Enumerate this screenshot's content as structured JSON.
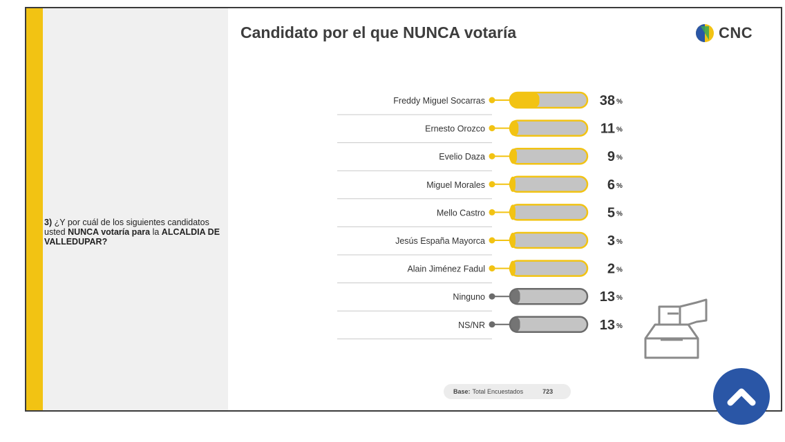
{
  "title": "Candidato por el que NUNCA votaría",
  "logo_text": "CNC",
  "question": {
    "number": "3)",
    "text_1": "¿Y por cuál de los siguientes candidatos usted",
    "text_bold": "NUNCA votaría para",
    "text_2": "la",
    "text_bold_2": "ALCALDIA DE VALLEDUPAR?"
  },
  "base": {
    "label": "Base:",
    "description": "Total Encuestados",
    "value": "723"
  },
  "colors": {
    "accent": "#f2c313",
    "gray": "#6b6b6b",
    "track": "#c4c4c4",
    "scroll_button": "#2a56a6"
  },
  "icons": {
    "logo": "cnc-logo-icon",
    "ballot": "ballot-box-icon",
    "scroll": "chevron-up-icon"
  },
  "chart_data": {
    "type": "bar",
    "orientation": "horizontal",
    "title": "Candidato por el que NUNCA votaría",
    "unit": "%",
    "xlim": [
      0,
      100
    ],
    "categories": [
      "Freddy Miguel Socarras",
      "Ernesto Orozco",
      "Evelio Daza",
      "Miguel Morales",
      "Mello Castro",
      "Jesús España Mayorca",
      "Alain Jiménez Fadul",
      "Ninguno",
      "NS/NR"
    ],
    "values": [
      38,
      11,
      9,
      6,
      5,
      3,
      2,
      13,
      13
    ],
    "groups": [
      "candidate",
      "candidate",
      "candidate",
      "candidate",
      "candidate",
      "candidate",
      "candidate",
      "other",
      "other"
    ]
  }
}
